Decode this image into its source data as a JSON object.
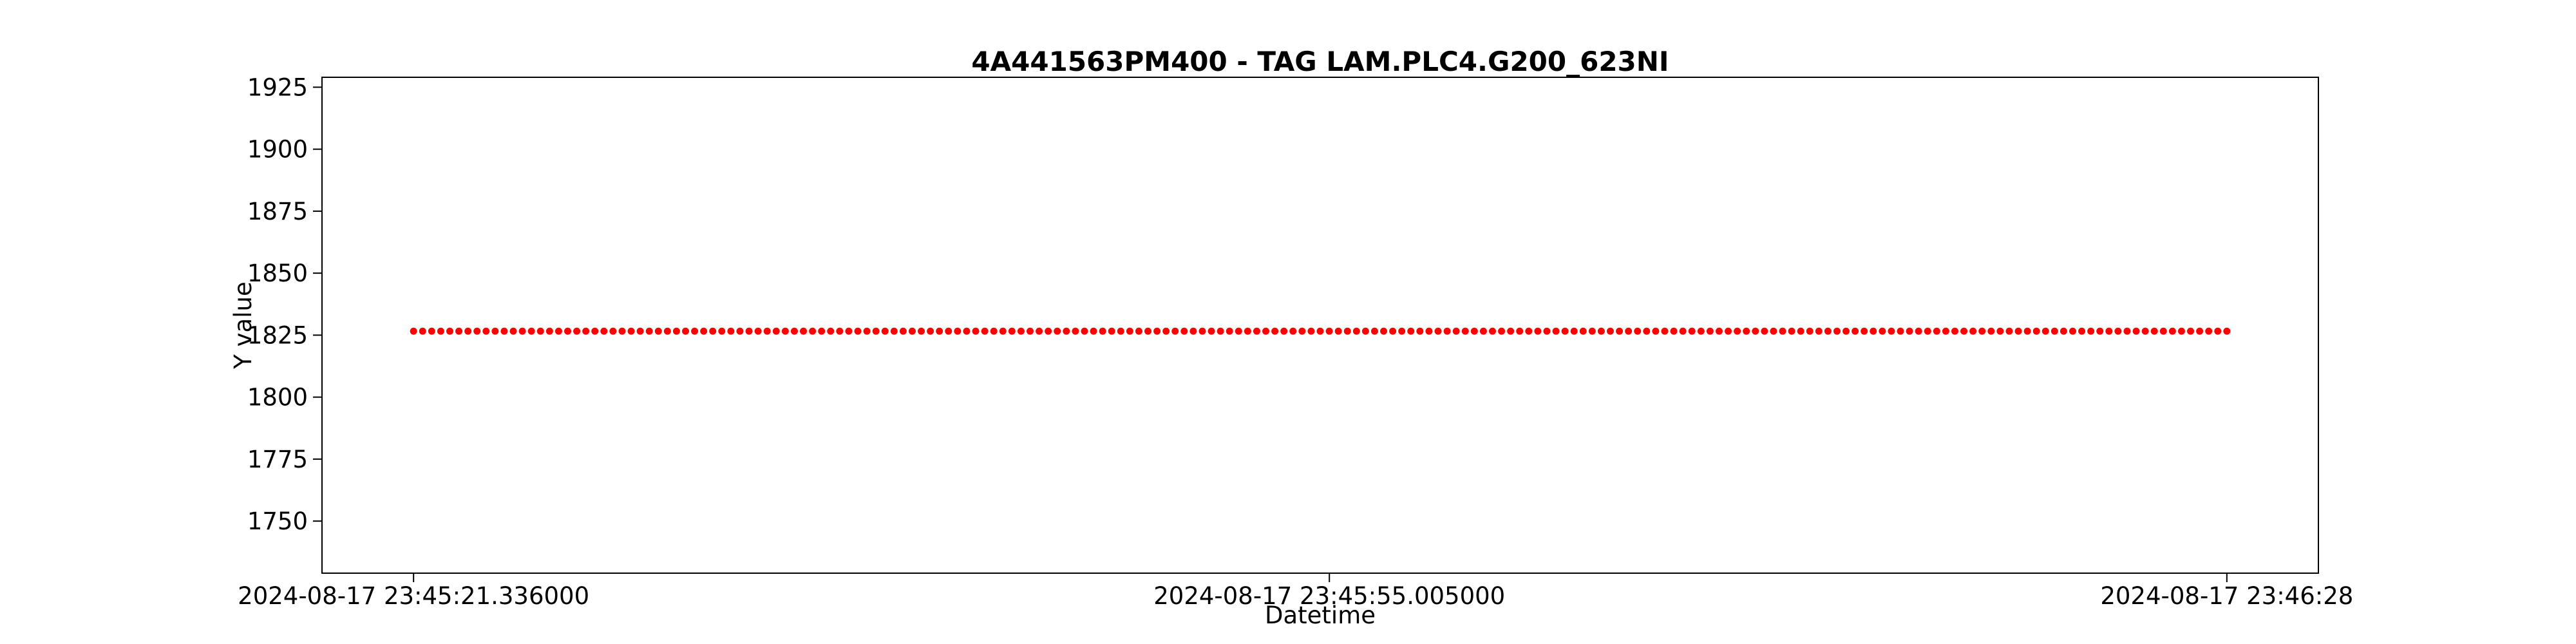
{
  "chart_data": {
    "type": "scatter",
    "title": "4A441563PM400 - TAG LAM.PLC4.G200_623NI",
    "xlabel": "Datetime",
    "ylabel": "Y value",
    "ylim": [
      1729,
      1929
    ],
    "yticks": [
      1750,
      1775,
      1800,
      1825,
      1850,
      1875,
      1900,
      1925
    ],
    "xlim": [
      "2024-08-17 23:45:17.970",
      "2024-08-17 23:46:31.366"
    ],
    "xticks": [
      {
        "value": "2024-08-17 23:45:21.336",
        "label": "2024-08-17 23:45:21.336000"
      },
      {
        "value": "2024-08-17 23:45:55.005",
        "label": "2024-08-17 23:45:55.005000"
      },
      {
        "value": "2024-08-17 23:46:28.000",
        "label": "2024-08-17 23:46:28"
      }
    ],
    "grid": false,
    "marker_color": "#ff0000",
    "series": [
      {
        "x_start": "2024-08-17 23:45:21.336",
        "x_end": "2024-08-17 23:46:28.000",
        "point_count": 201,
        "y": 1826.6
      }
    ]
  }
}
